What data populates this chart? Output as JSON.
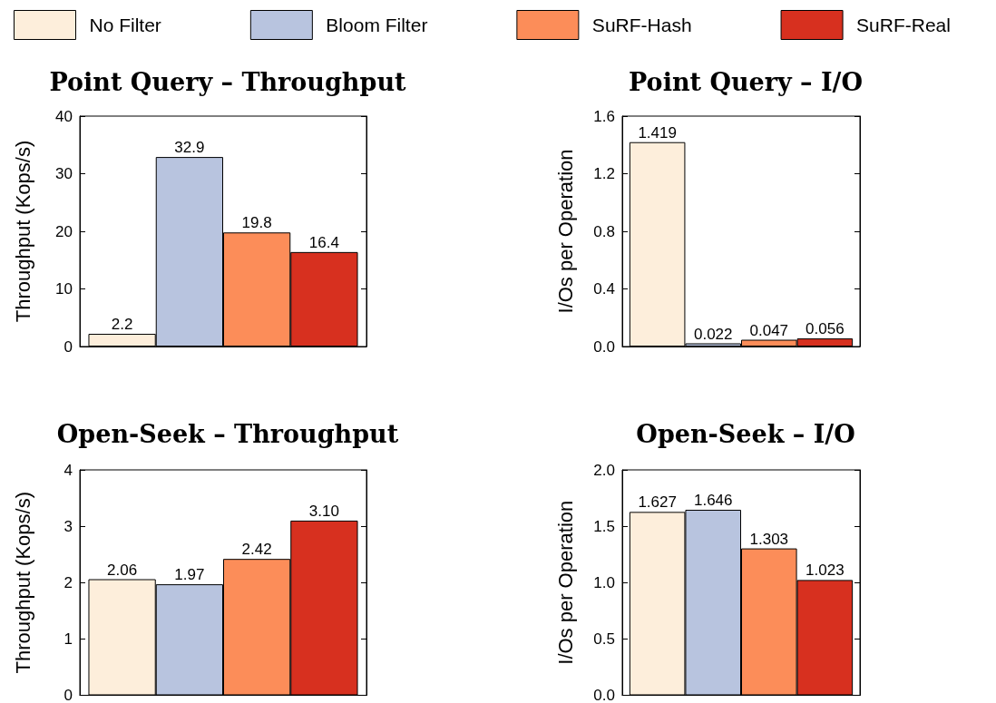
{
  "chart_data": [
    {
      "type": "bar",
      "title": "Point Query – Throughput",
      "ylabel": "Throughput (Kops/s)",
      "categories": [
        null
      ],
      "ylim": [
        0,
        40
      ],
      "yticks": [
        0,
        10,
        20,
        30,
        40
      ],
      "tick_labels": "y",
      "grid": false,
      "legend": "top",
      "series": [
        {
          "name": "No Filter",
          "color": "#fdeedb",
          "values": [
            2.2
          ],
          "value_labels": [
            "2.2"
          ]
        },
        {
          "name": "Bloom Filter",
          "color": "#b8c4df",
          "values": [
            32.9
          ],
          "value_labels": [
            "32.9"
          ]
        },
        {
          "name": "SuRF-Hash",
          "color": "#fc8d59",
          "values": [
            19.8
          ],
          "value_labels": [
            "19.8"
          ]
        },
        {
          "name": "SuRF-Real",
          "color": "#d7301f",
          "values": [
            16.4
          ],
          "value_labels": [
            "16.4"
          ]
        }
      ]
    },
    {
      "type": "bar",
      "title": "Point Query – I/O",
      "ylabel": "I/Os per Operation",
      "categories": [
        null
      ],
      "ylim": [
        0,
        1.6
      ],
      "yticks": [
        {
          "value": 0,
          "label": "0.0"
        },
        0.4,
        0.8,
        1.2,
        1.6
      ],
      "tick_labels": "y",
      "grid": false,
      "series": [
        {
          "color": "#fdeedb",
          "values": [
            1.419
          ],
          "value_labels": [
            "1.419"
          ]
        },
        {
          "color": "#b8c4df",
          "values": [
            0.022
          ],
          "value_labels": [
            "0.022"
          ]
        },
        {
          "color": "#fc8d59",
          "values": [
            0.047
          ],
          "value_labels": [
            "0.047"
          ]
        },
        {
          "color": "#d7301f",
          "values": [
            0.056
          ],
          "value_labels": [
            "0.056"
          ]
        }
      ]
    },
    {
      "type": "bar",
      "title": "Open-Seek – Throughput",
      "ylabel": "Throughput (Kops/s)",
      "categories": [
        null
      ],
      "ylim": [
        0,
        4
      ],
      "yticks": [
        0,
        1,
        2,
        3,
        4
      ],
      "tick_labels": "y",
      "grid": false,
      "series": [
        {
          "color": "#fdeedb",
          "values": [
            2.06
          ],
          "value_labels": [
            "2.06"
          ]
        },
        {
          "color": "#b8c4df",
          "values": [
            1.97
          ],
          "value_labels": [
            "1.97"
          ]
        },
        {
          "color": "#fc8d59",
          "values": [
            2.42
          ],
          "value_labels": [
            "2.42"
          ]
        },
        {
          "color": "#d7301f",
          "values": [
            3.1
          ],
          "value_labels": [
            "3.10"
          ]
        }
      ]
    },
    {
      "type": "bar",
      "title": "Open-Seek – I/O",
      "ylabel": "I/Os per Operation",
      "categories": [
        null
      ],
      "ylim": [
        0,
        2
      ],
      "yticks": [
        {
          "value": 0,
          "label": "0.0"
        },
        {
          "value": 0.5,
          "label": "0.5"
        },
        {
          "value": 1,
          "label": "1.0"
        },
        {
          "value": 1.5,
          "label": "1.5"
        },
        {
          "value": 2,
          "label": "2.0"
        }
      ],
      "tick_labels": "y",
      "grid": false,
      "series": [
        {
          "color": "#fdeedb",
          "values": [
            1.627
          ],
          "value_labels": [
            "1.627"
          ]
        },
        {
          "color": "#b8c4df",
          "values": [
            1.646
          ],
          "value_labels": [
            "1.646"
          ]
        },
        {
          "color": "#fc8d59",
          "values": [
            1.303
          ],
          "value_labels": [
            "1.303"
          ]
        },
        {
          "color": "#d7301f",
          "values": [
            1.023
          ],
          "value_labels": [
            "1.023"
          ]
        }
      ]
    }
  ]
}
